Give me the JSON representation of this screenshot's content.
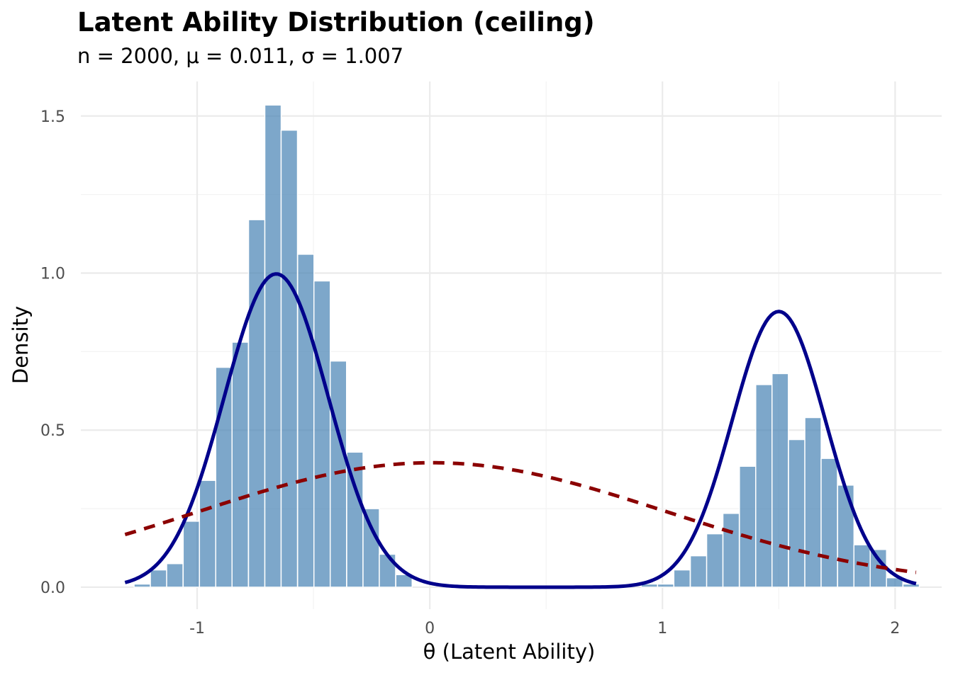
{
  "chart_data": {
    "type": "histogram",
    "title": "Latent Ability Distribution (ceiling)",
    "subtitle": "n = 2000, μ = 0.011, σ = 1.007",
    "xlabel": "θ (Latent Ability)",
    "ylabel": "Density",
    "xlim": [
      -1.5,
      2.2
    ],
    "ylim": [
      -0.07,
      1.61
    ],
    "x_ticks": [
      {
        "value": -1,
        "label": "-1"
      },
      {
        "value": 0,
        "label": "0"
      },
      {
        "value": 1,
        "label": "1"
      },
      {
        "value": 2,
        "label": "2"
      }
    ],
    "y_ticks": [
      {
        "value": 0,
        "label": "0.0"
      },
      {
        "value": 0.5,
        "label": "0.5"
      },
      {
        "value": 1,
        "label": "1.0"
      },
      {
        "value": 1.5,
        "label": "1.5"
      }
    ],
    "grid": true,
    "bin_width": 0.0703,
    "bins": [
      {
        "x": -1.236,
        "y": 0.01
      },
      {
        "x": -1.166,
        "y": 0.055
      },
      {
        "x": -1.096,
        "y": 0.075
      },
      {
        "x": -1.025,
        "y": 0.21
      },
      {
        "x": -0.955,
        "y": 0.34
      },
      {
        "x": -0.885,
        "y": 0.7
      },
      {
        "x": -0.815,
        "y": 0.78
      },
      {
        "x": -0.744,
        "y": 1.17
      },
      {
        "x": -0.674,
        "y": 1.535
      },
      {
        "x": -0.604,
        "y": 1.455
      },
      {
        "x": -0.533,
        "y": 1.06
      },
      {
        "x": -0.463,
        "y": 0.975
      },
      {
        "x": -0.393,
        "y": 0.72
      },
      {
        "x": -0.322,
        "y": 0.43
      },
      {
        "x": -0.252,
        "y": 0.25
      },
      {
        "x": -0.182,
        "y": 0.105
      },
      {
        "x": -0.111,
        "y": 0.04
      },
      {
        "x": 0.944,
        "y": 0.01
      },
      {
        "x": 1.014,
        "y": 0.01
      },
      {
        "x": 1.084,
        "y": 0.055
      },
      {
        "x": 1.155,
        "y": 0.1
      },
      {
        "x": 1.225,
        "y": 0.17
      },
      {
        "x": 1.295,
        "y": 0.235
      },
      {
        "x": 1.366,
        "y": 0.385
      },
      {
        "x": 1.436,
        "y": 0.645
      },
      {
        "x": 1.506,
        "y": 0.68
      },
      {
        "x": 1.577,
        "y": 0.47
      },
      {
        "x": 1.647,
        "y": 0.54
      },
      {
        "x": 1.717,
        "y": 0.41
      },
      {
        "x": 1.788,
        "y": 0.325
      },
      {
        "x": 1.858,
        "y": 0.135
      },
      {
        "x": 1.928,
        "y": 0.12
      },
      {
        "x": 1.998,
        "y": 0.03
      },
      {
        "x": 2.069,
        "y": 0.01
      }
    ],
    "series": [
      {
        "kind": "density",
        "color": "#00008b",
        "line_style": "solid",
        "mixture": [
          {
            "weight": 0.56,
            "mean": -0.66,
            "sd": 0.224
          },
          {
            "weight": 0.44,
            "mean": 1.5,
            "sd": 0.2
          }
        ],
        "x_range": [
          -1.31,
          2.09
        ]
      },
      {
        "kind": "normal_reference",
        "color": "#8b0000",
        "line_style": "dashed",
        "mean": 0.011,
        "sd": 1.007,
        "x_range": [
          -1.31,
          2.09
        ]
      }
    ],
    "colors": {
      "bars": "#4682b4",
      "bar_edge": "#ffffff",
      "grid_major": "#ebebeb",
      "grid_minor": "#f3f3f3"
    }
  }
}
